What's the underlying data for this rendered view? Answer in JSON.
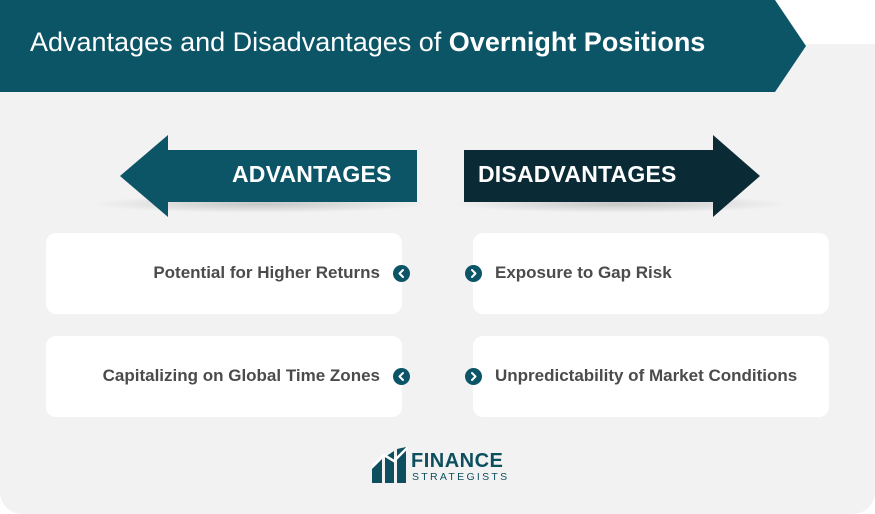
{
  "header": {
    "title_regular": "Advantages and Disadvantages of ",
    "title_bold": "Overnight Positions"
  },
  "advantages": {
    "heading": "ADVANTAGES",
    "items": [
      {
        "label": "Potential for Higher Returns",
        "icon": "chevron-left-icon"
      },
      {
        "label": "Capitalizing on Global Time Zones",
        "icon": "chevron-left-icon"
      }
    ]
  },
  "disadvantages": {
    "heading": "DISADVANTAGES",
    "items": [
      {
        "label": "Exposure to Gap Risk",
        "icon": "chevron-right-icon"
      },
      {
        "label": "Unpredictability of Market Conditions",
        "icon": "chevron-right-icon"
      }
    ]
  },
  "logo": {
    "name": "FINANCE",
    "tagline": "STRATEGISTS"
  },
  "colors": {
    "banner": "#0c5567",
    "advantages_arrow": "#0c5567",
    "disadvantages_arrow": "#0a2b35",
    "card_text": "#4b4b4b",
    "panel": "#f2f2f3"
  }
}
